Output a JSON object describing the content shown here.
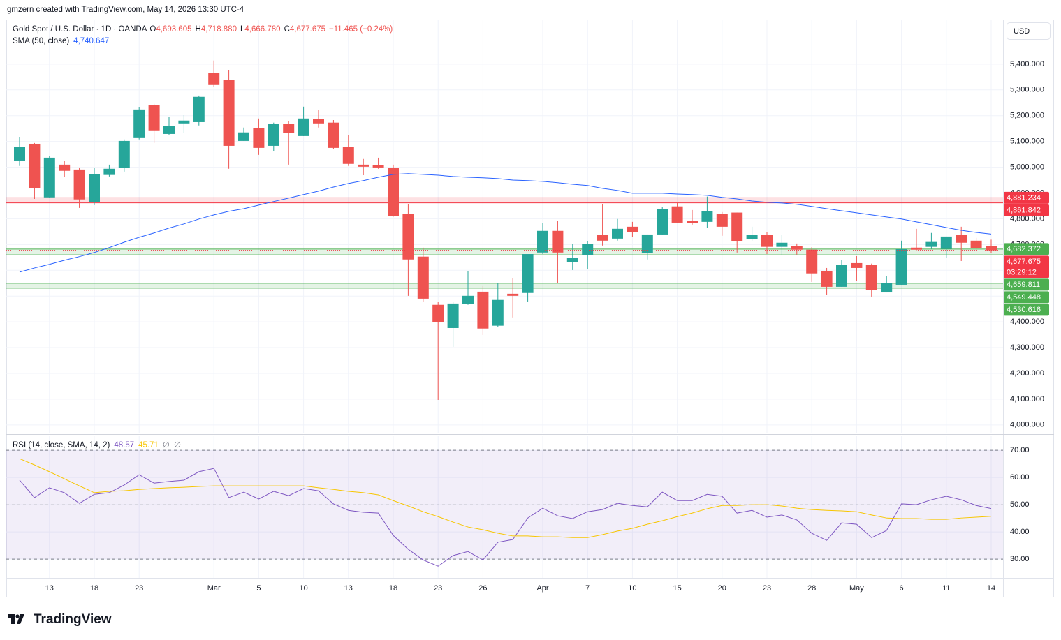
{
  "header": "gmzern created with TradingView.com, May 14, 2026 13:30 UTC-4",
  "logo": "TradingView",
  "currency": "USD",
  "chart_data": [
    {
      "type": "candlestick",
      "title": "Gold Spot / U.S. Dollar · 1D · OANDA",
      "ohlc_legend": [
        {
          "key": "O",
          "value": "4,693.605"
        },
        {
          "key": "H",
          "value": "4,718.880"
        },
        {
          "key": "L",
          "value": "4,666.780"
        },
        {
          "key": "C",
          "value": "4,677.675"
        }
      ],
      "change": "−11.465 (−0.24%)",
      "up_color": "#26a69a",
      "down_color": "#ef5350",
      "categories": [
        null,
        null,
        "13",
        null,
        null,
        "18",
        null,
        null,
        "23",
        null,
        null,
        null,
        null,
        "Mar",
        null,
        null,
        "5",
        null,
        null,
        "10",
        null,
        null,
        "13",
        null,
        null,
        "18",
        null,
        null,
        "23",
        null,
        null,
        "26",
        null,
        null,
        null,
        "Apr",
        null,
        null,
        "7",
        null,
        null,
        "10",
        null,
        null,
        "15",
        null,
        null,
        "20",
        null,
        null,
        "23",
        null,
        null,
        "28",
        null,
        null,
        "May",
        null,
        null,
        "6",
        null,
        null,
        "11",
        null,
        null,
        "14"
      ],
      "open": [
        5026,
        5091,
        4883,
        5010,
        4991,
        4864,
        4970,
        4997,
        5113,
        5240,
        5129,
        5170,
        5175,
        5365,
        5340,
        5102,
        5151,
        5083,
        5167,
        5121,
        5186,
        5173,
        5080,
        5010,
        5007,
        4997,
        4820,
        4653,
        4466,
        4376,
        4469,
        4517,
        4385,
        4509,
        4512,
        4669,
        4753,
        4631,
        4658,
        4737,
        4723,
        4769,
        4666,
        4739,
        4848,
        4793,
        4788,
        4818,
        4824,
        4720,
        4737,
        4691,
        4693,
        4680,
        4596,
        4536,
        4628,
        4620,
        4514,
        4544,
        4688,
        4691,
        4683,
        4737,
        4715,
        4693.605
      ],
      "high": [
        5116,
        5094,
        5043,
        5024,
        4999,
        4997,
        5010,
        5108,
        5232,
        5246,
        5194,
        5202,
        5278,
        5414,
        5378,
        5154,
        5189,
        5173,
        5178,
        5235,
        5221,
        5183,
        5126,
        5032,
        5037,
        5010,
        4858,
        4688,
        4479,
        4477,
        4596,
        4539,
        4550,
        4571,
        4663,
        4785,
        4793,
        4701,
        4712,
        4856,
        4799,
        4788,
        4739,
        4845,
        4864,
        4834,
        4886,
        4826,
        4824,
        4769,
        4747,
        4737,
        4704,
        4690,
        4609,
        4639,
        4655,
        4626,
        4577,
        4715,
        4761,
        4745,
        4731,
        4769,
        4726,
        4718.88
      ],
      "low": [
        5005,
        4877,
        4880,
        4961,
        4842,
        4853,
        4964,
        4983,
        5108,
        5094,
        5126,
        5132,
        5162,
        5311,
        4994,
        5102,
        5048,
        5062,
        5010,
        5121,
        5154,
        5070,
        5005,
        4969,
        4994,
        4808,
        4501,
        4479,
        4097,
        4303,
        4466,
        4349,
        4379,
        4417,
        4479,
        4663,
        4552,
        4601,
        4604,
        4696,
        4715,
        4728,
        4642,
        4739,
        4785,
        4777,
        4766,
        4734,
        4669,
        4715,
        4663,
        4658,
        4661,
        4555,
        4506,
        4536,
        4560,
        4498,
        4514,
        4544,
        4677,
        4683,
        4647,
        4636,
        4680,
        4666.78
      ],
      "close": [
        5080,
        4918,
        5037,
        4986,
        4875,
        4972,
        4994,
        5102,
        5224,
        5143,
        5159,
        5181,
        5273,
        5319,
        5083,
        5135,
        5075,
        5167,
        5132,
        5189,
        5170,
        5075,
        5013,
        5002,
        4999,
        4810,
        4642,
        4490,
        4398,
        4471,
        4501,
        4374,
        4485,
        4501,
        4663,
        4753,
        4669,
        4647,
        4701,
        4715,
        4761,
        4747,
        4739,
        4837,
        4785,
        4783,
        4829,
        4769,
        4712,
        4737,
        4691,
        4707,
        4680,
        4588,
        4536,
        4620,
        4609,
        4523,
        4550,
        4682,
        4680,
        4710,
        4731,
        4707,
        4685,
        4677.675
      ],
      "sma": {
        "name": "SMA (50, close)",
        "value_label": "4,740.647",
        "color": "#2962ff",
        "values": [
          4593,
          4609,
          4623,
          4639,
          4653,
          4669,
          4688,
          4709,
          4728,
          4745,
          4764,
          4780,
          4799,
          4815,
          4829,
          4839,
          4853,
          4867,
          4880,
          4894,
          4907,
          4923,
          4937,
          4948,
          4961,
          4972,
          4975,
          4972,
          4969,
          4964,
          4961,
          4959,
          4956,
          4950,
          4948,
          4945,
          4940,
          4934,
          4929,
          4918,
          4910,
          4899,
          4899,
          4899,
          4896,
          4894,
          4891,
          4883,
          4877,
          4869,
          4864,
          4861,
          4856,
          4848,
          4839,
          4831,
          4823,
          4815,
          4807,
          4799,
          4788,
          4777,
          4766,
          4755,
          4747,
          4740.647
        ]
      },
      "levels": [
        {
          "value": 4881.234,
          "label": "4,881.234",
          "color": "#f23645"
        },
        {
          "value": 4861.842,
          "label": "4,861.842",
          "color": "#f23645"
        },
        {
          "value": 4682.372,
          "label": "4,682.372",
          "color": "#4caf50"
        },
        {
          "value": 4659.811,
          "label": "4,659.811",
          "color": "#4caf50"
        },
        {
          "value": 4549.448,
          "label": "4,549.448",
          "color": "#4caf50"
        },
        {
          "value": 4530.616,
          "label": "4,530.616",
          "color": "#4caf50"
        }
      ],
      "last": {
        "value": 4677.675,
        "label": "4,677.675",
        "countdown": "03:29:12",
        "color": "#f23645"
      },
      "ylim": [
        3967,
        5573
      ],
      "yticks": [
        {
          "value": 4000,
          "label": "4,000.000"
        },
        {
          "value": 4100,
          "label": "4,100.000"
        },
        {
          "value": 4200,
          "label": "4,200.000"
        },
        {
          "value": 4300,
          "label": "4,300.000"
        },
        {
          "value": 4400,
          "label": "4,400.000"
        },
        {
          "value": 4500,
          "label": "4,500.000"
        },
        {
          "value": 4600,
          "label": "4,600.000"
        },
        {
          "value": 4700,
          "label": "4,700.000"
        },
        {
          "value": 4800,
          "label": "4,800.000"
        },
        {
          "value": 4900,
          "label": "4,900.000"
        },
        {
          "value": 5000,
          "label": "5,000.000"
        },
        {
          "value": 5100,
          "label": "5,100.000"
        },
        {
          "value": 5200,
          "label": "5,200.000"
        },
        {
          "value": 5300,
          "label": "5,300.000"
        },
        {
          "value": 5400,
          "label": "5,400.000"
        }
      ],
      "grid": true
    },
    {
      "type": "line",
      "title": "RSI (14, close, SMA, 14, 2)",
      "extra_legend": [
        "∅",
        "∅"
      ],
      "series": [
        {
          "name": "RSI",
          "value_label": "48.57",
          "color": "#7e57c2",
          "values": [
            59.0,
            52.6,
            56.2,
            54.4,
            50.5,
            53.8,
            54.4,
            57.2,
            61.0,
            57.9,
            58.5,
            59.0,
            62.1,
            63.3,
            52.6,
            54.6,
            52.1,
            54.9,
            53.3,
            55.9,
            55.1,
            50.3,
            47.9,
            47.2,
            46.9,
            38.7,
            33.6,
            29.7,
            27.4,
            31.3,
            32.8,
            29.7,
            36.2,
            37.2,
            45.1,
            48.7,
            45.9,
            44.9,
            47.4,
            48.2,
            50.5,
            49.7,
            49.2,
            54.6,
            51.5,
            51.5,
            53.8,
            53.1,
            46.9,
            47.9,
            45.4,
            46.2,
            44.4,
            39.5,
            36.9,
            43.3,
            42.8,
            37.9,
            40.5,
            50.3,
            50.0,
            51.8,
            53.1,
            51.8,
            49.7,
            48.57
          ]
        },
        {
          "name": "RSI-based MA",
          "value_label": "45.71",
          "color": "#f7c600",
          "values": [
            66.9,
            64.6,
            62.1,
            59.5,
            56.9,
            54.4,
            54.9,
            55.1,
            55.6,
            55.9,
            56.2,
            56.4,
            56.7,
            56.9,
            56.9,
            56.9,
            56.9,
            56.9,
            56.9,
            56.9,
            56.2,
            55.6,
            54.9,
            54.4,
            53.6,
            51.5,
            49.5,
            47.4,
            45.6,
            43.6,
            41.8,
            40.8,
            39.5,
            38.5,
            38.5,
            38.2,
            38.2,
            37.9,
            37.9,
            39.0,
            40.3,
            41.3,
            42.8,
            44.1,
            45.6,
            46.9,
            48.5,
            49.7,
            49.7,
            50.0,
            50.0,
            49.5,
            48.7,
            48.2,
            47.9,
            47.7,
            47.4,
            46.2,
            45.1,
            44.9,
            44.9,
            44.6,
            44.6,
            45.1,
            45.4,
            45.71
          ]
        }
      ],
      "band": [
        30,
        70
      ],
      "ylim": [
        23.1,
        75.4
      ],
      "yticks": [
        {
          "value": 30,
          "label": "30.00"
        },
        {
          "value": 40,
          "label": "40.00"
        },
        {
          "value": 50,
          "label": "50.00"
        },
        {
          "value": 60,
          "label": "60.00"
        },
        {
          "value": 70,
          "label": "70.00"
        }
      ]
    }
  ]
}
